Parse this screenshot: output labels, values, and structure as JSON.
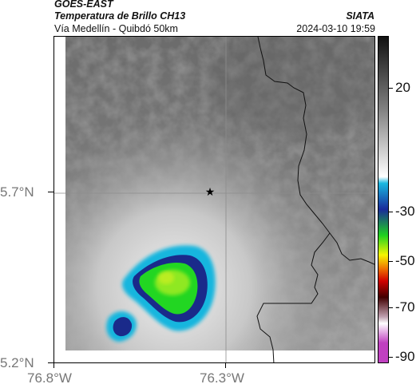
{
  "header": {
    "satellite": "GOES-EAST",
    "product": "Temperatura de Brillo CH13",
    "agency": "SIATA",
    "route": "Vía Medellín - Quibdó 50km",
    "timestamp": "2024-03-10 19:59"
  },
  "axes": {
    "lat_ticks": [
      "5.7°N",
      "5.2°N"
    ],
    "lon_ticks": [
      "76.8°W",
      "76.3°W"
    ]
  },
  "colorbar": {
    "ticks": [
      "20",
      "-30",
      "-50",
      "-70",
      "-90"
    ],
    "colors": {
      "dark_top": "#111111",
      "gray_mid": "#7f7f7f",
      "white": "#ffffff",
      "cyan": "#18b8e0",
      "blue": "#1a2a9a",
      "green": "#1fd21f",
      "yellow": "#f5f500",
      "orange": "#f07800",
      "red": "#d00000",
      "dark_red": "#400000",
      "pink": "#c0a0b0",
      "magenta": "#c040c0"
    }
  },
  "map": {
    "marker": "star-icon",
    "colors": {
      "background_dark": "#6a6a6a",
      "background_mid": "#858585",
      "warm_glow": "#d8d8d8",
      "cloud_edge": "#19b6de",
      "cloud_ring": "#1a2580",
      "cloud_core": "#22d622",
      "cloud_center": "#a0ee20"
    }
  }
}
